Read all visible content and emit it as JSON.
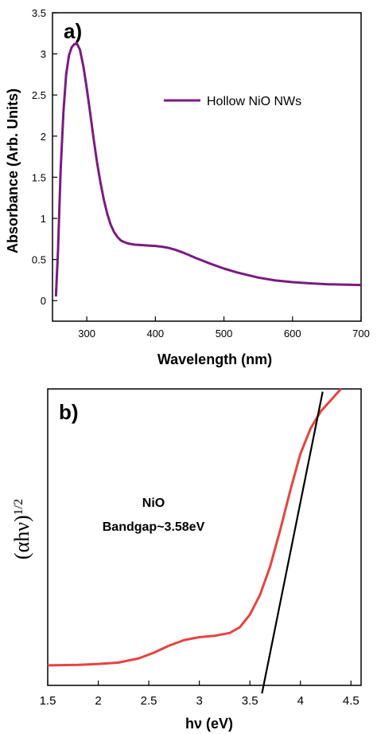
{
  "chart_data": [
    {
      "type": "line",
      "panel_label": "a)",
      "xlabel": "Wavelength (nm)",
      "ylabel": "Absorbance (Arb. Units)",
      "xlim": [
        250,
        700
      ],
      "ylim": [
        -0.25,
        3.5
      ],
      "x_ticks": [
        300,
        400,
        500,
        600,
        700
      ],
      "y_ticks": [
        0,
        0.5,
        1,
        1.5,
        2,
        2.5,
        3,
        3.5
      ],
      "legend_position": "top-right",
      "color": "#7B1A83",
      "series": [
        {
          "name": "Hollow NiO NWs",
          "x": [
            255,
            258,
            262,
            266,
            270,
            274,
            278,
            282,
            286,
            290,
            295,
            300,
            305,
            310,
            315,
            320,
            325,
            330,
            335,
            340,
            345,
            350,
            355,
            360,
            370,
            380,
            390,
            400,
            410,
            420,
            430,
            440,
            450,
            460,
            480,
            500,
            520,
            550,
            575,
            600,
            625,
            650,
            675,
            700
          ],
          "y": [
            0.05,
            0.6,
            1.6,
            2.3,
            2.75,
            2.98,
            3.08,
            3.12,
            3.12,
            3.05,
            2.85,
            2.58,
            2.28,
            1.97,
            1.68,
            1.43,
            1.22,
            1.05,
            0.92,
            0.83,
            0.77,
            0.73,
            0.71,
            0.695,
            0.68,
            0.675,
            0.67,
            0.665,
            0.655,
            0.64,
            0.615,
            0.585,
            0.55,
            0.515,
            0.45,
            0.39,
            0.34,
            0.28,
            0.245,
            0.225,
            0.21,
            0.2,
            0.195,
            0.19
          ]
        }
      ]
    },
    {
      "type": "line",
      "panel_label": "b)",
      "xlabel": "hν (eV)",
      "ylabel_main": "(αhν)",
      "ylabel_sup": "1/2",
      "xlim": [
        1.5,
        4.6
      ],
      "x_ticks": [
        1.5,
        2,
        2.5,
        3,
        3.5,
        4,
        4.5
      ],
      "x_tick_labels": [
        "1.5",
        "2",
        "2.5",
        "3",
        "3.5",
        "4",
        "4.5"
      ],
      "annotation_line1": "NiO",
      "annotation_line2": "Bandgap~3.58eV",
      "curve_color": "#E8423F",
      "fit_color": "#000000",
      "series": [
        {
          "x": [
            1.5,
            1.8,
            2.0,
            2.2,
            2.4,
            2.55,
            2.7,
            2.85,
            3.0,
            3.15,
            3.3,
            3.4,
            3.5,
            3.6,
            3.7,
            3.8,
            3.9,
            4.0,
            4.1,
            4.2,
            4.3,
            4.4
          ],
          "y": [
            0.02,
            0.022,
            0.025,
            0.03,
            0.045,
            0.065,
            0.09,
            0.11,
            0.12,
            0.125,
            0.135,
            0.155,
            0.2,
            0.27,
            0.37,
            0.5,
            0.64,
            0.77,
            0.86,
            0.92,
            0.96,
            1.0
          ]
        }
      ],
      "fit_line": {
        "x": [
          3.62,
          4.22
        ],
        "y": [
          0.0,
          0.99
        ]
      }
    }
  ]
}
